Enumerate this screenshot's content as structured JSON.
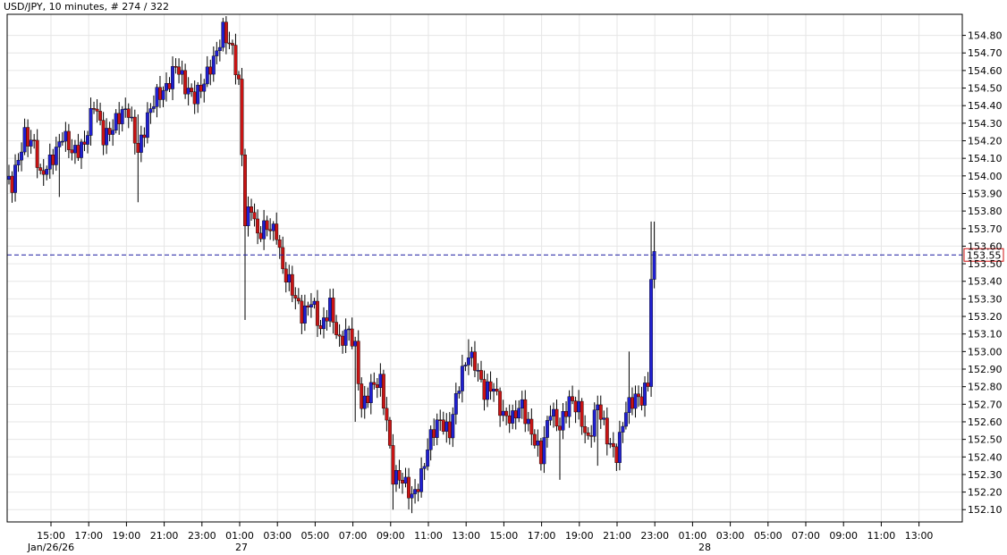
{
  "header": {
    "symbol": "USD/JPY",
    "interval": ", 10 minutes",
    "bar_count": ", # 274 / 322"
  },
  "colors": {
    "up": "#1f1fd0",
    "down": "#c81414",
    "wick": "#000000",
    "grid": "#e6e6e6",
    "price_line": "#1a1aa0",
    "price_label_border": "#d01010"
  },
  "chart_data": {
    "type": "candlestick",
    "instrument": "USD/JPY",
    "timeframe": "10 minutes",
    "ylim": [
      152.03,
      154.92
    ],
    "y_ticks": [
      "154.80",
      "154.70",
      "154.60",
      "154.50",
      "154.40",
      "154.30",
      "154.20",
      "154.10",
      "154.00",
      "153.90",
      "153.80",
      "153.70",
      "153.60",
      "153.50",
      "153.40",
      "153.30",
      "153.20",
      "153.10",
      "153.00",
      "152.90",
      "152.80",
      "152.70",
      "152.60",
      "152.50",
      "152.40",
      "152.30",
      "152.20",
      "152.10"
    ],
    "x_ticks": [
      "15:00",
      "17:00",
      "19:00",
      "21:00",
      "23:00",
      "01:00",
      "03:00",
      "05:00",
      "07:00",
      "09:00",
      "11:00",
      "13:00",
      "15:00",
      "17:00",
      "19:00",
      "21:00",
      "23:00",
      "01:00",
      "03:00",
      "05:00",
      "07:00",
      "09:00",
      "11:00",
      "13:00"
    ],
    "date_labels": [
      "Jan/26/26",
      "27",
      "28"
    ],
    "current_price": "153.55",
    "grid": true,
    "anchors": [
      {
        "i": 0,
        "c": 153.98
      },
      {
        "i": 2,
        "c": 153.93
      },
      {
        "i": 6,
        "c": 154.25
      },
      {
        "i": 9,
        "c": 154.18
      },
      {
        "i": 11,
        "c": 153.97
      },
      {
        "i": 14,
        "c": 154.09
      },
      {
        "i": 18,
        "c": 154.23
      },
      {
        "i": 21,
        "c": 154.12
      },
      {
        "i": 25,
        "c": 154.2
      },
      {
        "i": 28,
        "c": 154.4
      },
      {
        "i": 31,
        "c": 154.22
      },
      {
        "i": 35,
        "c": 154.32
      },
      {
        "i": 39,
        "c": 154.36
      },
      {
        "i": 42,
        "c": 154.16
      },
      {
        "i": 45,
        "c": 154.32
      },
      {
        "i": 48,
        "c": 154.45
      },
      {
        "i": 51,
        "c": 154.52
      },
      {
        "i": 54,
        "c": 154.62
      },
      {
        "i": 57,
        "c": 154.5
      },
      {
        "i": 60,
        "c": 154.47
      },
      {
        "i": 63,
        "c": 154.52
      },
      {
        "i": 66,
        "c": 154.65
      },
      {
        "i": 69,
        "c": 154.85
      },
      {
        "i": 72,
        "c": 154.7
      },
      {
        "i": 74,
        "c": 154.5
      },
      {
        "i": 76,
        "c": 153.75
      },
      {
        "i": 78,
        "c": 153.85
      },
      {
        "i": 80,
        "c": 153.65
      },
      {
        "i": 83,
        "c": 153.7
      },
      {
        "i": 86,
        "c": 153.7
      },
      {
        "i": 88,
        "c": 153.47
      },
      {
        "i": 91,
        "c": 153.33
      },
      {
        "i": 94,
        "c": 153.22
      },
      {
        "i": 97,
        "c": 153.3
      },
      {
        "i": 100,
        "c": 153.1
      },
      {
        "i": 103,
        "c": 153.28
      },
      {
        "i": 106,
        "c": 153.05
      },
      {
        "i": 109,
        "c": 153.1
      },
      {
        "i": 111,
        "c": 153.02
      },
      {
        "i": 113,
        "c": 152.7
      },
      {
        "i": 116,
        "c": 152.78
      },
      {
        "i": 119,
        "c": 152.82
      },
      {
        "i": 121,
        "c": 152.62
      },
      {
        "i": 123,
        "c": 152.3
      },
      {
        "i": 126,
        "c": 152.25
      },
      {
        "i": 129,
        "c": 152.18
      },
      {
        "i": 132,
        "c": 152.3
      },
      {
        "i": 135,
        "c": 152.5
      },
      {
        "i": 138,
        "c": 152.62
      },
      {
        "i": 141,
        "c": 152.55
      },
      {
        "i": 144,
        "c": 152.8
      },
      {
        "i": 147,
        "c": 153.0
      },
      {
        "i": 149,
        "c": 152.95
      },
      {
        "i": 152,
        "c": 152.75
      },
      {
        "i": 155,
        "c": 152.8
      },
      {
        "i": 158,
        "c": 152.65
      },
      {
        "i": 161,
        "c": 152.6
      },
      {
        "i": 164,
        "c": 152.7
      },
      {
        "i": 167,
        "c": 152.55
      },
      {
        "i": 170,
        "c": 152.38
      },
      {
        "i": 173,
        "c": 152.68
      },
      {
        "i": 176,
        "c": 152.58
      },
      {
        "i": 179,
        "c": 152.7
      },
      {
        "i": 182,
        "c": 152.68
      },
      {
        "i": 185,
        "c": 152.5
      },
      {
        "i": 188,
        "c": 152.68
      },
      {
        "i": 191,
        "c": 152.52
      },
      {
        "i": 194,
        "c": 152.42
      },
      {
        "i": 197,
        "c": 152.65
      },
      {
        "i": 200,
        "c": 152.75
      },
      {
        "i": 202,
        "c": 152.75
      },
      {
        "i": 204,
        "c": 152.82
      },
      {
        "i": 205,
        "c": 153.4
      },
      {
        "i": 206,
        "c": 153.57
      }
    ]
  }
}
